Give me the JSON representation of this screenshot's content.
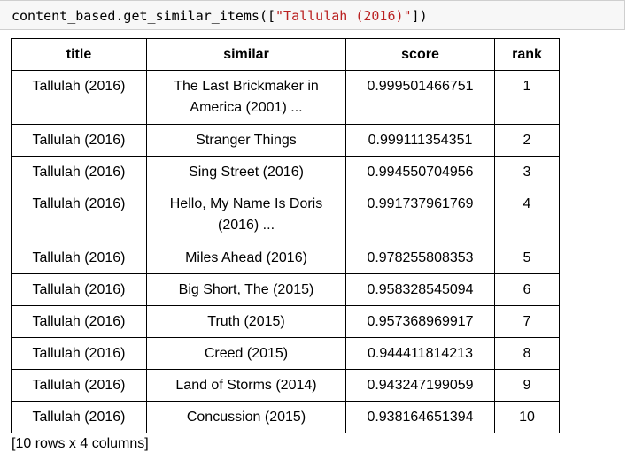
{
  "code": {
    "prefix": "content_based.get_similar_items([",
    "string_arg": "\"Tallulah (2016)\"",
    "suffix": "])"
  },
  "table": {
    "headers": [
      "title",
      "similar",
      "score",
      "rank"
    ],
    "rows": [
      {
        "title": "Tallulah (2016)",
        "similar_line1": "The Last Brickmaker in",
        "similar_line2": "America (2001) ...",
        "score": "0.999501466751",
        "rank": "1"
      },
      {
        "title": "Tallulah (2016)",
        "similar": "Stranger Things",
        "score": "0.999111354351",
        "rank": "2"
      },
      {
        "title": "Tallulah (2016)",
        "similar": "Sing Street (2016)",
        "score": "0.994550704956",
        "rank": "3"
      },
      {
        "title": "Tallulah (2016)",
        "similar_line1": "Hello, My Name Is Doris",
        "similar_line2": "(2016) ...",
        "score": "0.991737961769",
        "rank": "4"
      },
      {
        "title": "Tallulah (2016)",
        "similar": "Miles Ahead (2016)",
        "score": "0.978255808353",
        "rank": "5"
      },
      {
        "title": "Tallulah (2016)",
        "similar": "Big Short, The (2015)",
        "score": "0.958328545094",
        "rank": "6"
      },
      {
        "title": "Tallulah (2016)",
        "similar": "Truth (2015)",
        "score": "0.957368969917",
        "rank": "7"
      },
      {
        "title": "Tallulah (2016)",
        "similar": "Creed (2015)",
        "score": "0.944411814213",
        "rank": "8"
      },
      {
        "title": "Tallulah (2016)",
        "similar": "Land of Storms (2014)",
        "score": "0.943247199059",
        "rank": "9"
      },
      {
        "title": "Tallulah (2016)",
        "similar": "Concussion (2015)",
        "score": "0.938164651394",
        "rank": "10"
      }
    ]
  },
  "footer": "[10 rows x 4 columns]",
  "colors": {
    "code_background": "#f7f7f7",
    "string_color": "#ba2121"
  }
}
